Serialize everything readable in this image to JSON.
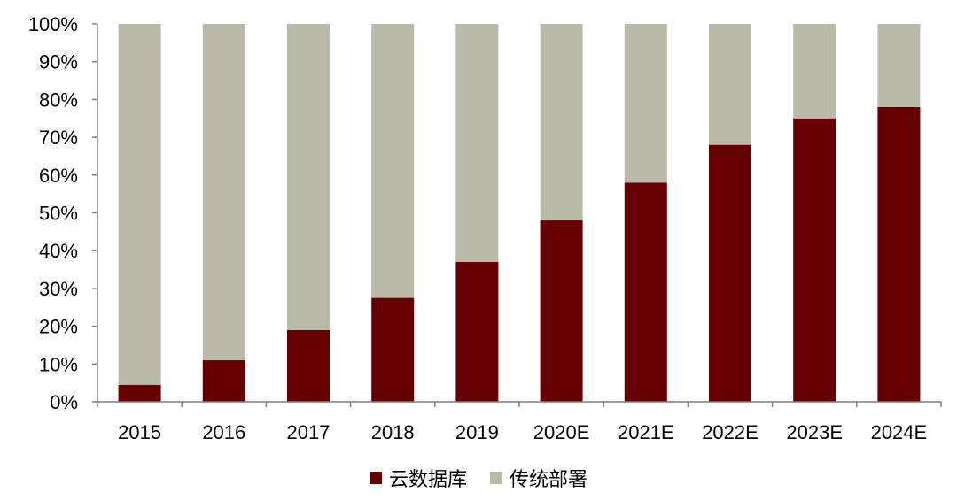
{
  "chart_data": {
    "type": "bar",
    "stacked": true,
    "categories": [
      "2015",
      "2016",
      "2017",
      "2018",
      "2019",
      "2020E",
      "2021E",
      "2022E",
      "2023E",
      "2024E"
    ],
    "series": [
      {
        "name": "云数据库",
        "color": "#660000",
        "values": [
          4.5,
          11,
          19,
          27.5,
          37,
          48,
          58,
          68,
          75,
          78
        ]
      },
      {
        "name": "传统部署",
        "color": "#BBB9A8",
        "values": [
          95.5,
          89,
          81,
          72.5,
          63,
          52,
          42,
          32,
          25,
          22
        ]
      }
    ],
    "y_ticks": [
      "0%",
      "10%",
      "20%",
      "30%",
      "40%",
      "50%",
      "60%",
      "70%",
      "80%",
      "90%",
      "100%"
    ],
    "ylim": [
      0,
      100
    ],
    "grid": false,
    "legend_position": "bottom"
  }
}
